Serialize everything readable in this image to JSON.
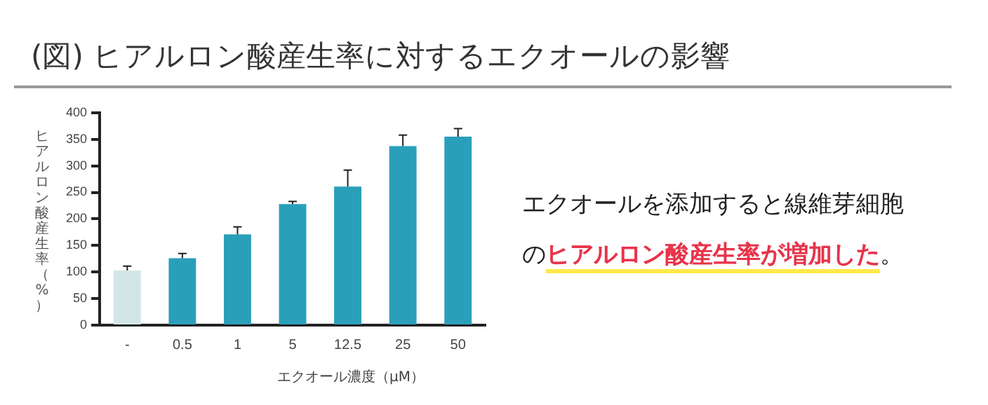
{
  "chart_data": {
    "type": "bar",
    "title": "(図) ヒアルロン酸産生率に対するエクオールの影響",
    "xlabel": "エクオール濃度（μM）",
    "ylabel": "ヒアルロン酸産生率（%）",
    "categories": [
      "-",
      "0.5",
      "1",
      "5",
      "12.5",
      "25",
      "50"
    ],
    "values": [
      103,
      126,
      171,
      228,
      261,
      337,
      355
    ],
    "colors": [
      "#d3e6e6",
      "#2a9fba",
      "#2a9fba",
      "#2a9fba",
      "#2a9fba",
      "#2a9fba",
      "#2a9fba"
    ],
    "errors": [
      [
        103,
        111
      ],
      [
        126,
        135
      ],
      [
        171,
        185
      ],
      [
        228,
        233
      ],
      [
        261,
        292
      ],
      [
        337,
        358
      ],
      [
        355,
        370
      ]
    ],
    "ylim": [
      0,
      400
    ],
    "yticks": [
      0,
      50,
      100,
      150,
      200,
      250,
      300,
      350,
      400
    ],
    "grid": false,
    "annotations": [
      "エクオールを添加すると線維芽細胞の",
      "ヒアルロン酸産生率が増加した",
      "。"
    ]
  }
}
